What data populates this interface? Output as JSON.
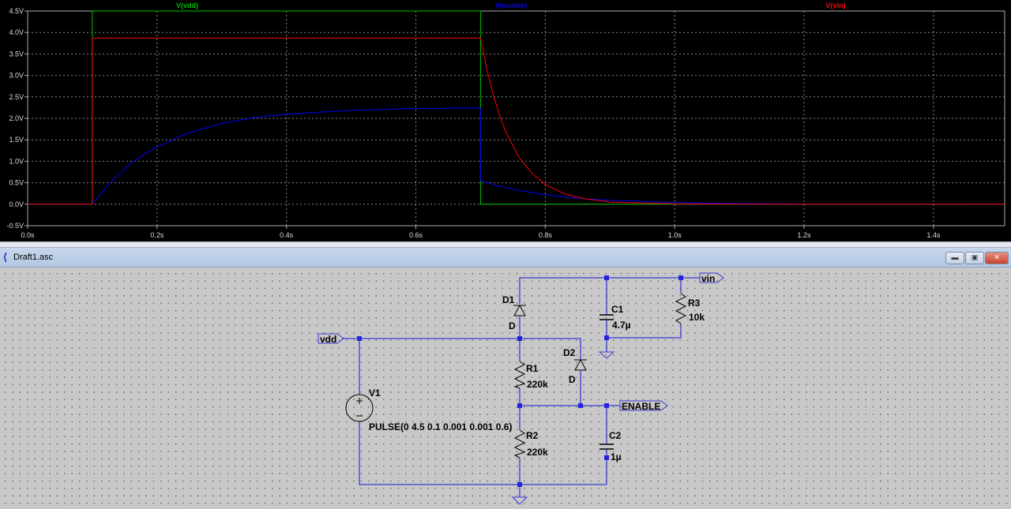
{
  "chart_data": {
    "type": "line",
    "title": "",
    "xlabel": "",
    "ylabel": "",
    "xlim": [
      0,
      1.51
    ],
    "ylim": [
      -0.5,
      4.5
    ],
    "grid": true,
    "legend_placement": "top",
    "background": "#000000",
    "x_ticks": [
      "0.0s",
      "0.2s",
      "0.4s",
      "0.6s",
      "0.8s",
      "1.0s",
      "1.2s",
      "1.4s"
    ],
    "x_tick_values": [
      0,
      0.2,
      0.4,
      0.6,
      0.8,
      1.0,
      1.2,
      1.4
    ],
    "y_ticks": [
      "4.5V",
      "4.0V",
      "3.5V",
      "3.0V",
      "2.5V",
      "2.0V",
      "1.5V",
      "1.0V",
      "0.5V",
      "0.0V",
      "-0.5V"
    ],
    "y_tick_values": [
      4.5,
      4.0,
      3.5,
      3.0,
      2.5,
      2.0,
      1.5,
      1.0,
      0.5,
      0.0,
      -0.5
    ],
    "series": [
      {
        "name": "V(vdd)",
        "color": "#00c000",
        "x": [
          0,
          0.1,
          0.1,
          0.7,
          0.7,
          1.51
        ],
        "y": [
          0,
          0,
          4.5,
          4.5,
          0,
          0
        ]
      },
      {
        "name": "V(enable)",
        "color": "#0000ff",
        "x": [
          0,
          0.1,
          0.12,
          0.14,
          0.16,
          0.18,
          0.2,
          0.25,
          0.3,
          0.35,
          0.4,
          0.5,
          0.6,
          0.7,
          0.7,
          0.72,
          0.74,
          0.76,
          0.78,
          0.8,
          0.85,
          0.9,
          1.0,
          1.1,
          1.2,
          1.51
        ],
        "y": [
          0,
          0,
          0.37,
          0.69,
          0.95,
          1.16,
          1.34,
          1.67,
          1.88,
          2.02,
          2.1,
          2.19,
          2.23,
          2.24,
          0.55,
          0.46,
          0.38,
          0.32,
          0.27,
          0.22,
          0.14,
          0.09,
          0.04,
          0.015,
          0.006,
          0
        ]
      },
      {
        "name": "V(vin)",
        "color": "#ff0000",
        "x": [
          0,
          0.1,
          0.1,
          0.7,
          0.71,
          0.72,
          0.73,
          0.74,
          0.76,
          0.78,
          0.8,
          0.83,
          0.86,
          0.9,
          1.0,
          1.1,
          1.51
        ],
        "y": [
          0,
          0,
          3.87,
          3.87,
          3.13,
          2.53,
          2.04,
          1.65,
          1.08,
          0.71,
          0.46,
          0.24,
          0.13,
          0.05,
          0.01,
          0,
          0
        ]
      }
    ]
  },
  "window": {
    "title": "Draft1.asc",
    "icon": "ltspice-icon",
    "buttons": {
      "minimize": "minimize-icon",
      "maximize": "maximize-icon",
      "close": "close-icon"
    }
  },
  "schematic": {
    "net_labels": {
      "vdd": "vdd",
      "vin": "vin",
      "enable": "ENABLE"
    },
    "components": {
      "D1": {
        "name": "D1",
        "value": "D"
      },
      "D2": {
        "name": "D2",
        "value": "D"
      },
      "C1": {
        "name": "C1",
        "value": "4.7µ"
      },
      "C2": {
        "name": "C2",
        "value": "1µ"
      },
      "R1": {
        "name": "R1",
        "value": "220k"
      },
      "R2": {
        "name": "R2",
        "value": "220k"
      },
      "R3": {
        "name": "R3",
        "value": "10k"
      },
      "V1": {
        "name": "V1",
        "value": "PULSE(0 4.5 0.1 0.001 0.001 0.6)"
      }
    },
    "wire_color": "#3b3bd6"
  }
}
